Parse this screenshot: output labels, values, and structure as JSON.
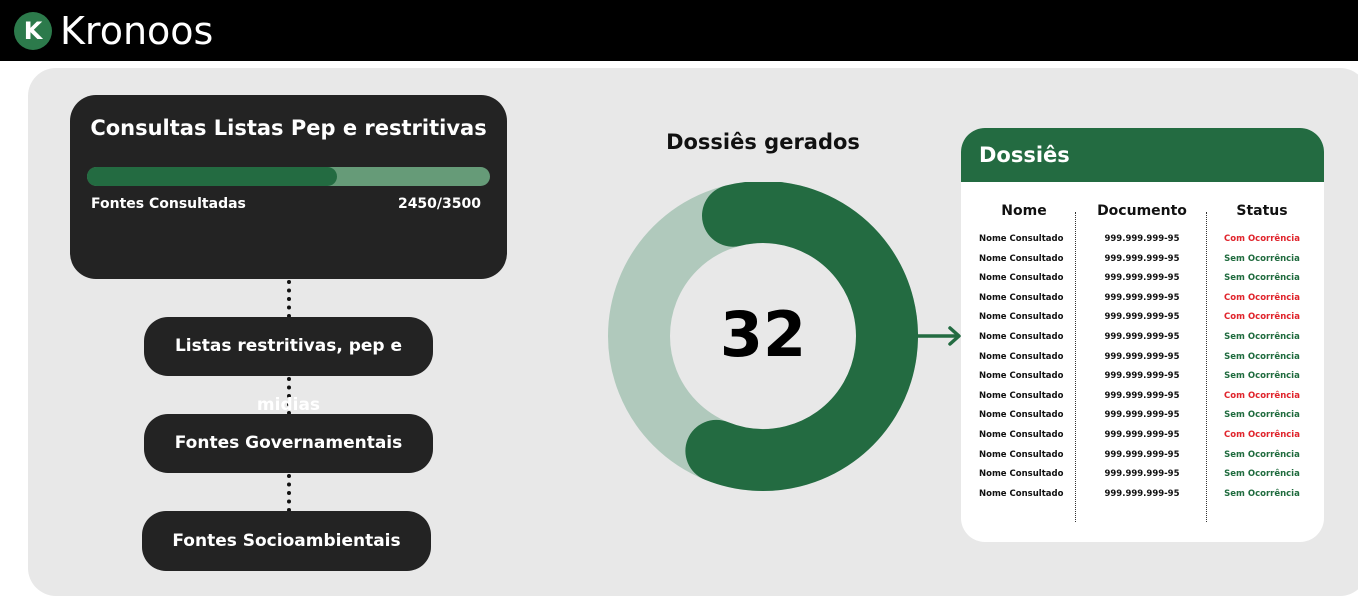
{
  "brand": {
    "logo_letter": "K",
    "name": "Kronoos",
    "accent_color": "#236b41"
  },
  "main_card": {
    "title": "Consultas Listas Pep e restritivas",
    "progress": {
      "label": "Fontes Consultadas",
      "value_text": "2450/3500",
      "current": 2450,
      "total": 3500
    }
  },
  "sources": [
    {
      "label": "Listas restritivas, pep e midias"
    },
    {
      "label": "Fontes Governamentais"
    },
    {
      "label": "Fontes Socioambientais"
    }
  ],
  "dossies_chart": {
    "title": "Dossiês gerados",
    "value_text": "32",
    "fill_fraction": 0.6,
    "fill_color": "#236b41",
    "track_color": "#b0c9bc"
  },
  "dossies_table": {
    "title": "Dossiês",
    "columns": [
      "Nome",
      "Documento",
      "Status"
    ],
    "rows": [
      {
        "nome": "Nome Consultado",
        "documento": "999.999.999-95",
        "status": "Com Ocorrência",
        "status_type": "red"
      },
      {
        "nome": "Nome Consultado",
        "documento": "999.999.999-95",
        "status": "Sem Ocorrência",
        "status_type": "green"
      },
      {
        "nome": "Nome Consultado",
        "documento": "999.999.999-95",
        "status": "Sem Ocorrência",
        "status_type": "green"
      },
      {
        "nome": "Nome Consultado",
        "documento": "999.999.999-95",
        "status": "Com Ocorrência",
        "status_type": "red"
      },
      {
        "nome": "Nome Consultado",
        "documento": "999.999.999-95",
        "status": "Com Ocorrência",
        "status_type": "red"
      },
      {
        "nome": "Nome Consultado",
        "documento": "999.999.999-95",
        "status": "Sem Ocorrência",
        "status_type": "green"
      },
      {
        "nome": "Nome Consultado",
        "documento": "999.999.999-95",
        "status": "Sem Ocorrência",
        "status_type": "green"
      },
      {
        "nome": "Nome Consultado",
        "documento": "999.999.999-95",
        "status": "Sem Ocorrência",
        "status_type": "green"
      },
      {
        "nome": "Nome Consultado",
        "documento": "999.999.999-95",
        "status": "Com Ocorrência",
        "status_type": "red"
      },
      {
        "nome": "Nome Consultado",
        "documento": "999.999.999-95",
        "status": "Sem Ocorrência",
        "status_type": "green"
      },
      {
        "nome": "Nome Consultado",
        "documento": "999.999.999-95",
        "status": "Com Ocorrência",
        "status_type": "red"
      },
      {
        "nome": "Nome Consultado",
        "documento": "999.999.999-95",
        "status": "Sem Ocorrência",
        "status_type": "green"
      },
      {
        "nome": "Nome Consultado",
        "documento": "999.999.999-95",
        "status": "Sem Ocorrência",
        "status_type": "green"
      },
      {
        "nome": "Nome Consultado",
        "documento": "999.999.999-95",
        "status": "Sem Ocorrência",
        "status_type": "green"
      }
    ]
  }
}
